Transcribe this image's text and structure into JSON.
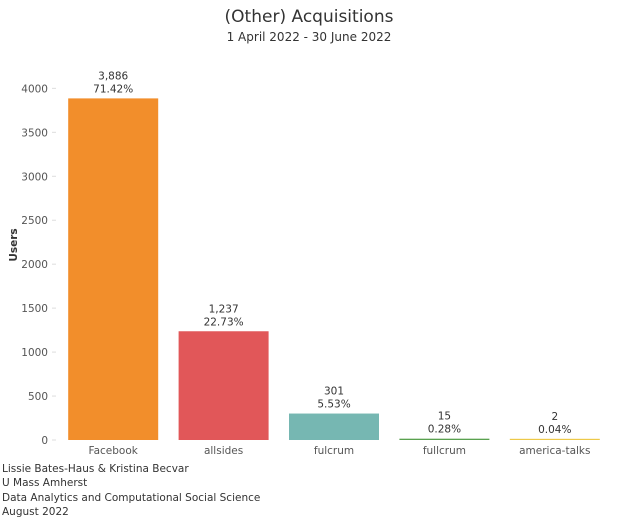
{
  "chart_data": {
    "type": "bar",
    "title": "(Other) Acquisitions",
    "subtitle": "1 April 2022 - 30 June 2022",
    "xlabel": "",
    "ylabel": "Users",
    "ylim": [
      0,
      4300
    ],
    "yticks": [
      0,
      500,
      1000,
      1500,
      2000,
      2500,
      3000,
      3500,
      4000
    ],
    "yticks_text": [
      "0",
      "500",
      "1000",
      "1500",
      "2000",
      "2500",
      "3000",
      "3500",
      "4000"
    ],
    "grid": false,
    "categories": [
      "Facebook",
      "allsides",
      "fulcrum",
      "fullcrum",
      "america-talks"
    ],
    "values": [
      3886,
      1237,
      301,
      15,
      2
    ],
    "value_labels": [
      "3,886",
      "1,237",
      "301",
      "15",
      "2"
    ],
    "percent_labels": [
      "71.42%",
      "22.73%",
      "5.53%",
      "0.28%",
      "0.04%"
    ],
    "colors": [
      "#f28e2b",
      "#e15759",
      "#76b7b2",
      "#59a14f",
      "#edc948"
    ]
  },
  "credits": {
    "line1": "Lissie Bates-Haus & Kristina Becvar",
    "line2": "U Mass Amherst",
    "line3": "Data Analytics and Computational Social Science",
    "line4": "August 2022"
  }
}
